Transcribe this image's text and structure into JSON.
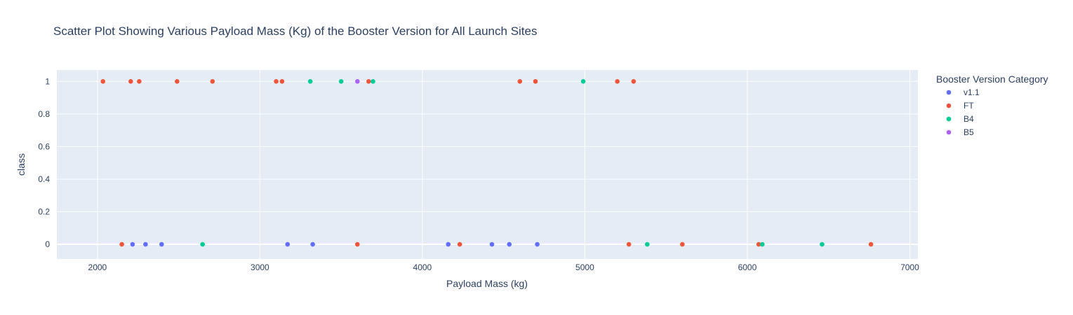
{
  "chart_data": {
    "type": "scatter",
    "title": "Scatter Plot Showing Various Payload Mass (Kg) of the Booster Version for All Launch Sites",
    "xlabel": "Payload Mass (kg)",
    "ylabel": "class",
    "xlim": [
      1750,
      7050
    ],
    "ylim": [
      -0.09,
      1.07
    ],
    "x_ticks": [
      2000,
      3000,
      4000,
      5000,
      6000,
      7000
    ],
    "y_ticks": [
      0,
      0.2,
      0.4,
      0.6,
      0.8,
      1
    ],
    "grid": true,
    "legend_title": "Booster Version Category",
    "legend_position": "top-right",
    "series": [
      {
        "name": "v1.1",
        "color": "#636efa",
        "points": [
          [
            2216,
            0
          ],
          [
            2296,
            0
          ],
          [
            2395,
            0
          ],
          [
            3170,
            0
          ],
          [
            3325,
            0
          ],
          [
            4159,
            0
          ],
          [
            4428,
            0
          ],
          [
            4535,
            0
          ],
          [
            4707,
            0
          ]
        ]
      },
      {
        "name": "FT",
        "color": "#ef553b",
        "points": [
          [
            2034,
            1
          ],
          [
            2205,
            1
          ],
          [
            2257,
            1
          ],
          [
            2490,
            1
          ],
          [
            2708,
            1
          ],
          [
            3100,
            1
          ],
          [
            3136,
            1
          ],
          [
            3669,
            1
          ],
          [
            4600,
            1
          ],
          [
            4696,
            1
          ],
          [
            5200,
            1
          ],
          [
            5300,
            1
          ],
          [
            2150,
            0
          ],
          [
            3600,
            0
          ],
          [
            4230,
            0
          ],
          [
            5271,
            0
          ],
          [
            5600,
            0
          ],
          [
            6070,
            0
          ],
          [
            6761,
            0
          ]
        ]
      },
      {
        "name": "B4",
        "color": "#00cc96",
        "points": [
          [
            3310,
            1
          ],
          [
            3500,
            1
          ],
          [
            3696,
            1
          ],
          [
            4990,
            1
          ],
          [
            2647,
            0
          ],
          [
            5384,
            0
          ],
          [
            6092,
            0
          ],
          [
            6460,
            0
          ]
        ]
      },
      {
        "name": "B5",
        "color": "#ab63fa",
        "points": [
          [
            3600,
            1
          ]
        ]
      }
    ]
  }
}
